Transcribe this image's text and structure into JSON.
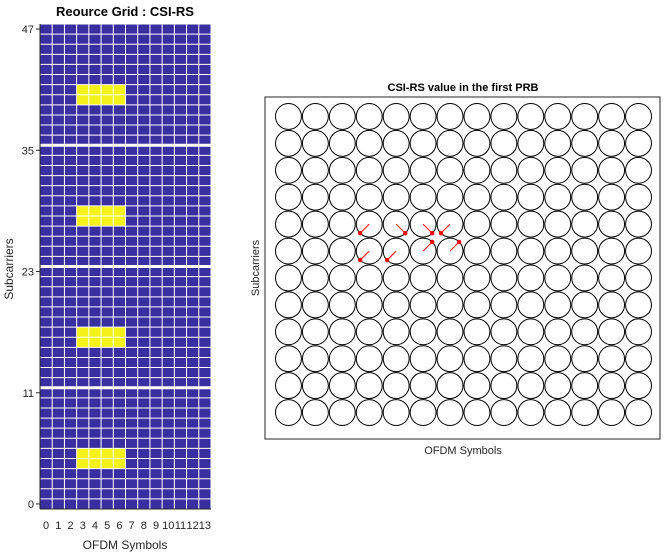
{
  "chart_data": [
    {
      "type": "heatmap",
      "title": "Reource Grid : CSI-RS",
      "xlabel": "OFDM Symbols",
      "ylabel": "Subcarriers",
      "x_ticks": [
        "0",
        "1",
        "2",
        "3",
        "4",
        "5",
        "6",
        "7",
        "8",
        "9",
        "10",
        "11",
        "12",
        "13"
      ],
      "y_ticks": [
        "0",
        "11",
        "23",
        "35",
        "47"
      ],
      "x_range": [
        0,
        13
      ],
      "y_range": [
        0,
        47
      ],
      "grid": true,
      "colors": {
        "empty": "#3a2fa0",
        "csirs": "#f4f21a",
        "grid": "#ffffff"
      },
      "csirs_blocks": [
        {
          "symbols": [
            3,
            6
          ],
          "subcarriers": [
            4,
            5
          ]
        },
        {
          "symbols": [
            3,
            6
          ],
          "subcarriers": [
            16,
            17
          ]
        },
        {
          "symbols": [
            3,
            6
          ],
          "subcarriers": [
            28,
            29
          ]
        },
        {
          "symbols": [
            3,
            6
          ],
          "subcarriers": [
            40,
            41
          ]
        }
      ]
    },
    {
      "type": "scatter",
      "title": "CSI-RS value in the first PRB",
      "xlabel": "OFDM Symbols",
      "ylabel": "Subcarriers",
      "grid_shape": {
        "symbols": 14,
        "subcarriers": 12
      },
      "colors": {
        "circle": "#000000",
        "vector": "#ff0000"
      },
      "vectors": [
        {
          "symbol": 3,
          "subcarrier": 7,
          "dx": -0.35,
          "dy": -0.35
        },
        {
          "symbol": 4,
          "subcarrier": 7,
          "dx": 0.35,
          "dy": -0.35
        },
        {
          "symbol": 5,
          "subcarrier": 7,
          "dx": 0.35,
          "dy": -0.35
        },
        {
          "symbol": 6,
          "subcarrier": 7,
          "dx": -0.35,
          "dy": -0.35
        },
        {
          "symbol": 3,
          "subcarrier": 6,
          "dx": -0.35,
          "dy": -0.35
        },
        {
          "symbol": 4,
          "subcarrier": 6,
          "dx": -0.35,
          "dy": -0.35
        },
        {
          "symbol": 5,
          "subcarrier": 6,
          "dx": 0.35,
          "dy": 0.35
        },
        {
          "symbol": 6,
          "subcarrier": 6,
          "dx": 0.35,
          "dy": 0.35
        }
      ]
    }
  ]
}
